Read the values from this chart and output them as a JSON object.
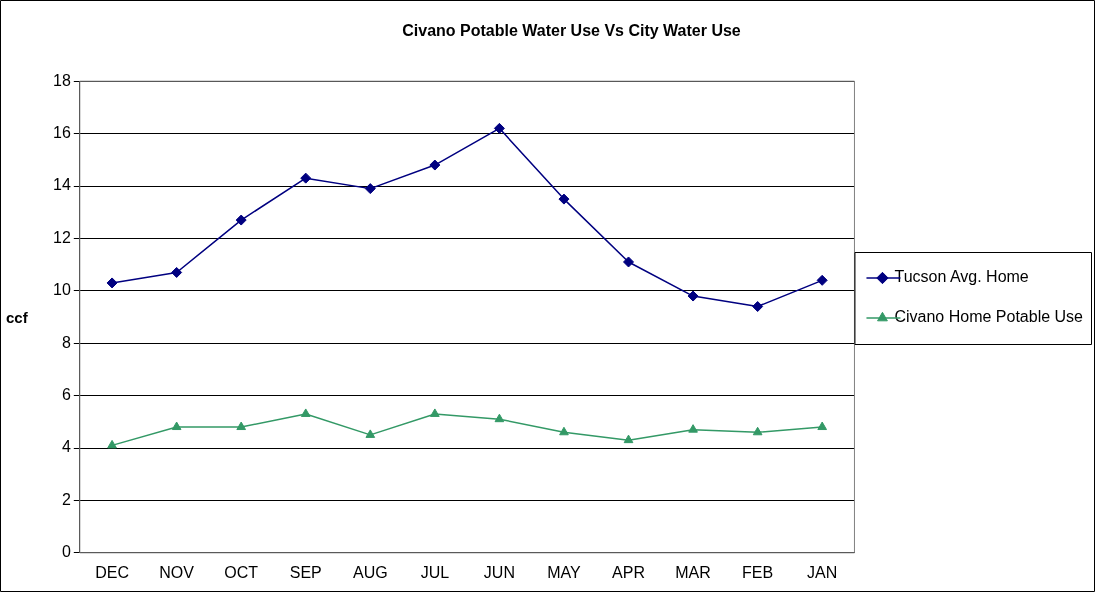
{
  "chart_data": {
    "type": "line",
    "title": "Civano Potable Water Use Vs City Water Use",
    "ylabel": "ccf",
    "categories": [
      "DEC",
      "NOV",
      "OCT",
      "SEP",
      "AUG",
      "JUL",
      "JUN",
      "MAY",
      "APR",
      "MAR",
      "FEB",
      "JAN"
    ],
    "series": [
      {
        "name": "Tucson Avg. Home",
        "color": "#000080",
        "marker": "diamond",
        "values": [
          10.3,
          10.7,
          12.7,
          14.3,
          13.9,
          14.8,
          16.2,
          13.5,
          11.1,
          9.8,
          9.4,
          10.4
        ]
      },
      {
        "name": "Civano Home Potable Use",
        "color": "#339966",
        "marker": "triangle",
        "values": [
          4.1,
          4.8,
          4.8,
          5.3,
          4.5,
          5.3,
          5.1,
          4.6,
          4.3,
          4.7,
          4.6,
          4.8
        ]
      }
    ],
    "ylim": [
      0,
      18
    ],
    "yticks": [
      0,
      2,
      4,
      6,
      8,
      10,
      12,
      14,
      16,
      18
    ],
    "grid": "y",
    "legend": "right",
    "line_style": "solid"
  }
}
